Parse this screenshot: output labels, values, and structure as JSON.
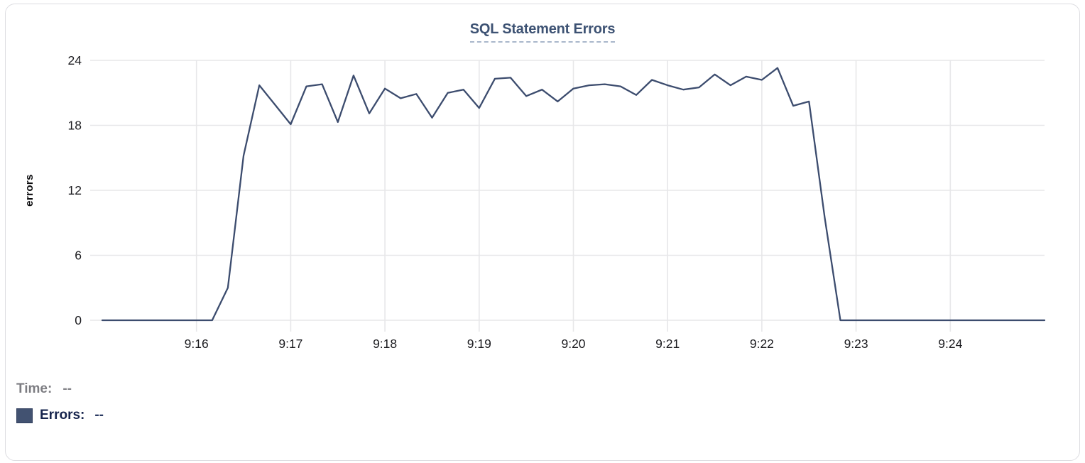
{
  "chart": {
    "title": "SQL Statement Errors"
  },
  "chart_data": {
    "type": "line",
    "title": "SQL Statement Errors",
    "xlabel": "",
    "ylabel": "errors",
    "ylim": [
      0,
      24
    ],
    "yticks": [
      0,
      6,
      12,
      18,
      24
    ],
    "xtick_labels": [
      "9:16",
      "9:17",
      "9:18",
      "9:19",
      "9:20",
      "9:21",
      "9:22",
      "9:23",
      "9:24"
    ],
    "x_start": "9:15:00",
    "x_end": "9:25:00",
    "sample_interval_seconds": 10,
    "grid": true,
    "legend_position": "bottom-left",
    "line_color": "#3c4c6e",
    "series": [
      {
        "name": "Errors",
        "values": [
          0,
          0,
          0,
          0,
          0,
          0,
          0,
          0,
          3,
          15.2,
          21.7,
          19.9,
          18.1,
          21.6,
          21.8,
          18.3,
          22.6,
          19.1,
          21.4,
          20.5,
          20.9,
          18.7,
          21,
          21.3,
          19.6,
          22.3,
          22.4,
          20.7,
          21.3,
          20.2,
          21.4,
          21.7,
          21.8,
          21.6,
          20.8,
          22.2,
          21.7,
          21.3,
          21.5,
          22.7,
          21.7,
          22.5,
          22.2,
          23.3,
          19.8,
          20.2,
          9.5,
          0,
          0,
          0,
          0,
          0,
          0,
          0,
          0,
          0,
          0,
          0,
          0,
          0,
          0
        ]
      }
    ]
  },
  "tooltip_readout": {
    "time_label": "Time:",
    "time_value": "--",
    "errors_label": "Errors:",
    "errors_value": "--"
  },
  "colors": {
    "line": "#3c4c6e",
    "title": "#3d5273",
    "title_underline": "#a9b7cb",
    "grid": "#e7e7e9",
    "swatch": "#425271",
    "card_border": "#dddde1"
  }
}
